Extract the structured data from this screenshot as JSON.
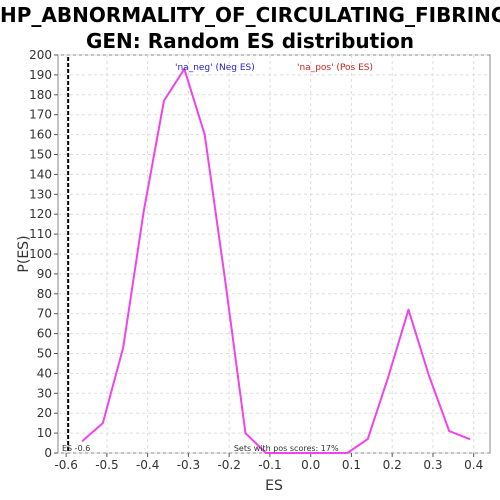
{
  "chart_data": {
    "type": "line",
    "title_line1": "HP_ABNORMALITY_OF_CIRCULATING_FIBRINO",
    "title_line2": "GEN: Random ES distribution",
    "xlabel": "ES",
    "ylabel": "P(ES)",
    "xlim": [
      -0.62,
      0.44
    ],
    "ylim": [
      0,
      200
    ],
    "x_ticks": [
      -0.6,
      -0.5,
      -0.4,
      -0.3,
      -0.2,
      -0.1,
      0.0,
      0.1,
      0.2,
      0.3,
      0.4
    ],
    "x_tick_labels": [
      "-0.6",
      "-0.5",
      "-0.4",
      "-0.3",
      "-0.2",
      "-0.1",
      "0.0",
      "0.1",
      "0.2",
      "0.3",
      "0.4"
    ],
    "y_ticks": [
      0,
      10,
      20,
      30,
      40,
      50,
      60,
      70,
      80,
      90,
      100,
      110,
      120,
      130,
      140,
      150,
      160,
      170,
      180,
      190,
      200
    ],
    "grid": true,
    "series": [
      {
        "color": "#ee44ee",
        "x": [
          -0.56,
          -0.51,
          -0.46,
          -0.41,
          -0.36,
          -0.31,
          -0.26,
          -0.21,
          -0.16,
          -0.11,
          -0.06,
          -0.01,
          0.04,
          0.09,
          0.14,
          0.19,
          0.24,
          0.29,
          0.34,
          0.39
        ],
        "y": [
          6,
          15,
          53,
          121,
          177,
          193,
          160,
          87,
          10,
          0,
          0,
          0,
          0,
          0,
          7,
          38,
          72,
          39,
          11,
          7
        ]
      }
    ],
    "legend": [
      {
        "label": "'na_neg' (Neg ES)",
        "color": "#2222cc"
      },
      {
        "label": "'na_pos' (Pos ES)",
        "color": "#cc2222"
      }
    ],
    "legend_placement": "top",
    "marker_line": {
      "x": -0.6,
      "style": "dashed",
      "color": "#000000"
    },
    "annotations": {
      "es_label": "ES -0.6",
      "pos_scores": "Sets with pos scores: 17%"
    }
  }
}
